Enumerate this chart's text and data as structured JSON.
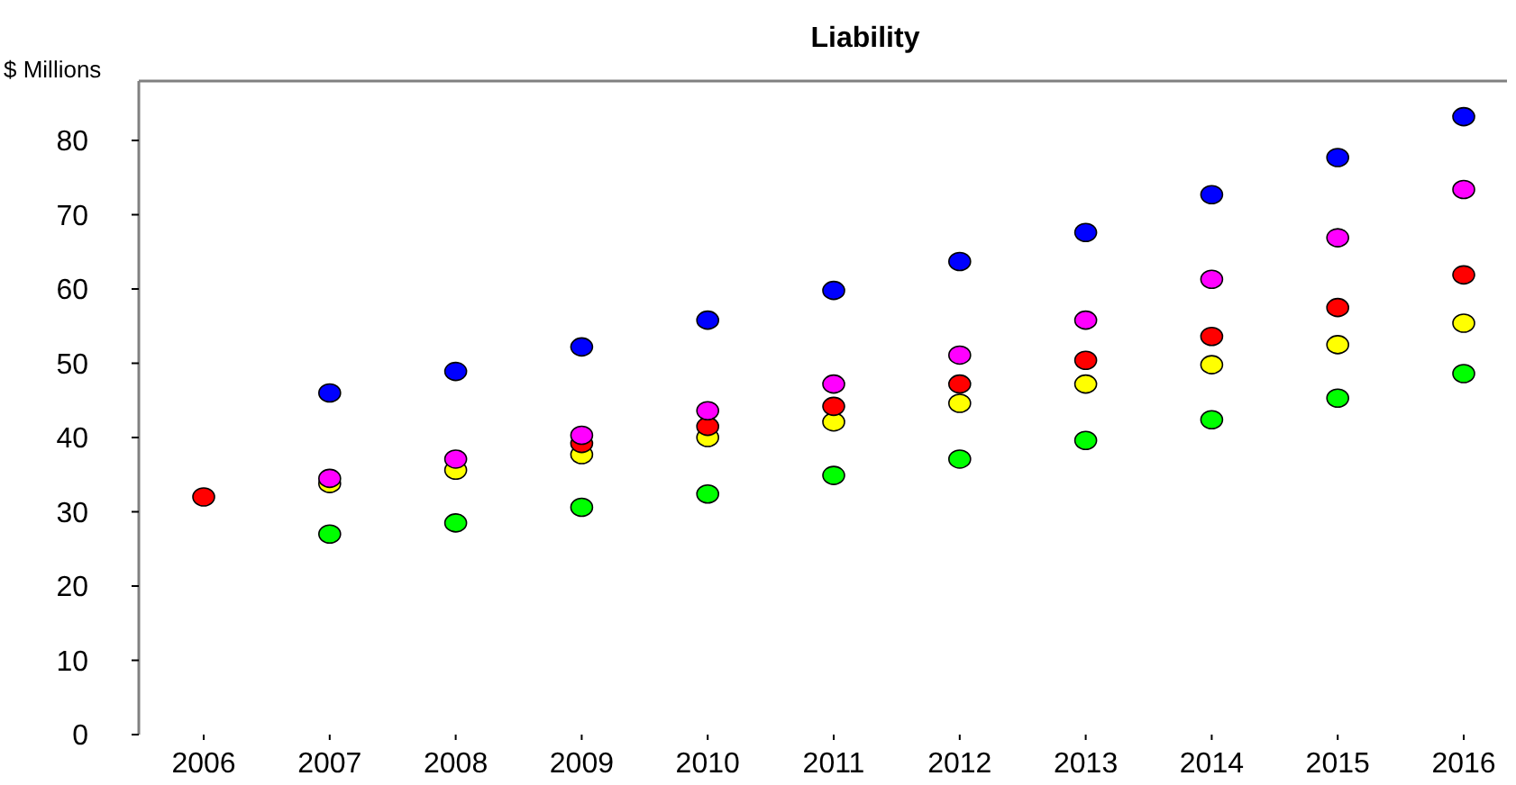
{
  "chart_data": {
    "type": "scatter",
    "title": "Liability",
    "ylabel": "$ Millions",
    "categories": [
      "2006",
      "2007",
      "2008",
      "2009",
      "2010",
      "2011",
      "2012",
      "2013",
      "2014",
      "2015",
      "2016"
    ],
    "ylim": [
      0,
      88
    ],
    "yticks": [
      0,
      10,
      20,
      30,
      40,
      50,
      60,
      70,
      80
    ],
    "grid": false,
    "marker": "circle",
    "series": [
      {
        "color": "#0000ff",
        "values": [
          null,
          46.0,
          48.9,
          52.2,
          55.8,
          59.8,
          63.7,
          67.6,
          72.7,
          77.7,
          83.2
        ]
      },
      {
        "color": "#ff00ff",
        "values": [
          null,
          34.5,
          37.1,
          40.3,
          43.6,
          47.2,
          51.1,
          55.8,
          61.3,
          66.9,
          73.4
        ]
      },
      {
        "color": "#ff0000",
        "values": [
          32.0,
          null,
          null,
          39.2,
          41.5,
          44.2,
          47.2,
          50.4,
          53.6,
          57.5,
          61.9
        ]
      },
      {
        "color": "#ffff00",
        "values": [
          null,
          33.8,
          35.6,
          37.7,
          40.0,
          42.1,
          44.6,
          47.2,
          49.8,
          52.5,
          55.4
        ]
      },
      {
        "color": "#00ff00",
        "values": [
          null,
          27.0,
          28.5,
          30.6,
          32.4,
          34.9,
          37.1,
          39.6,
          42.4,
          45.3,
          48.6
        ]
      }
    ]
  }
}
